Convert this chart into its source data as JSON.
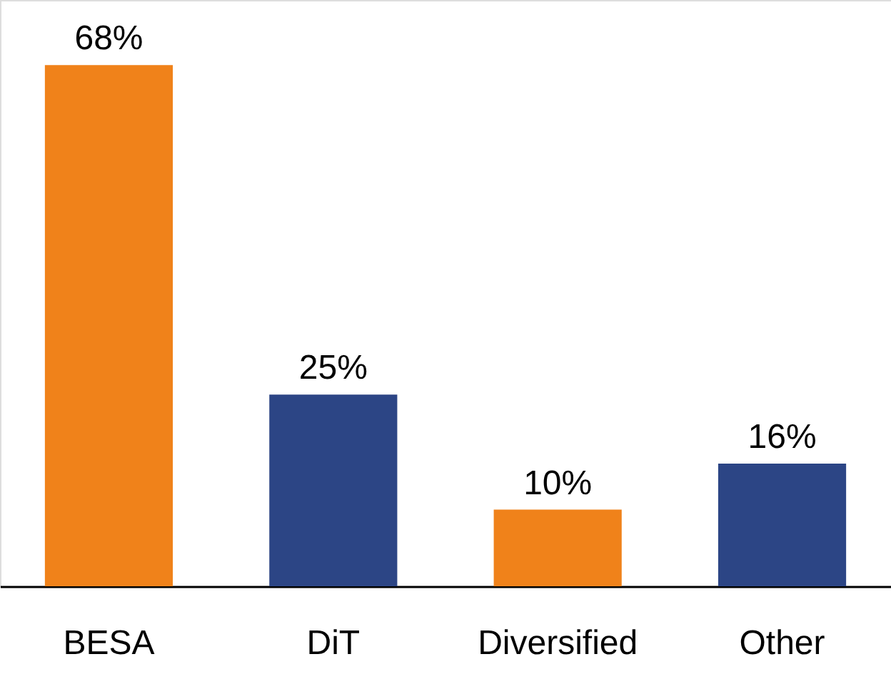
{
  "chart_data": {
    "type": "bar",
    "categories": [
      "BESA",
      "DiT",
      "Diversified",
      "Other"
    ],
    "values": [
      68,
      25,
      10,
      16
    ],
    "colors": [
      "#f0821a",
      "#2c4585",
      "#f0821a",
      "#2c4585"
    ],
    "value_labels": [
      "68%",
      "25%",
      "10%",
      "16%"
    ]
  }
}
